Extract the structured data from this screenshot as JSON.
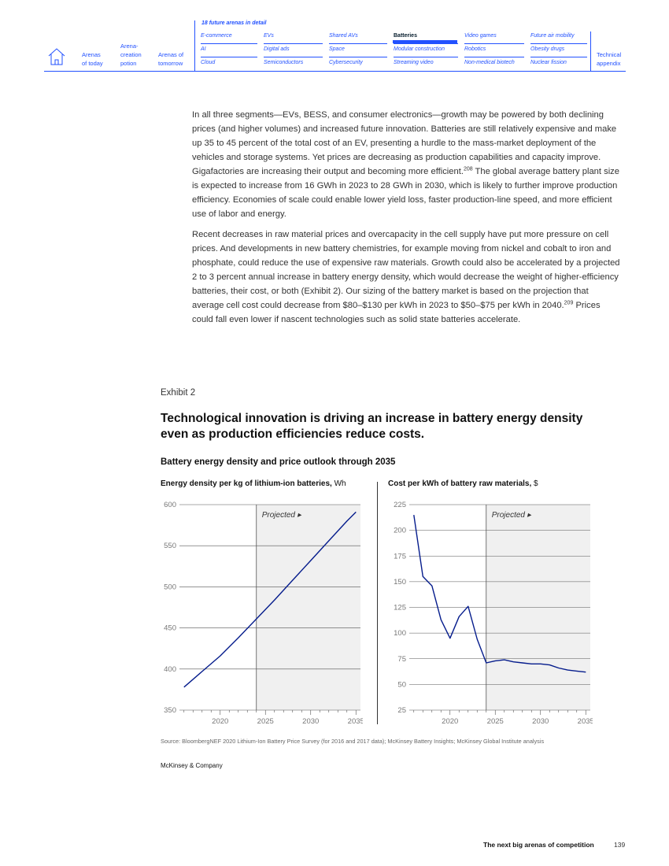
{
  "nav": {
    "home_icon": "house-icon",
    "links": [
      {
        "line1": "Arenas",
        "line2": "of today"
      },
      {
        "line1": "Arena-",
        "line2": "creation",
        "line3": "potion"
      },
      {
        "line1": "Arenas of",
        "line2": "tomorrow"
      },
      {
        "line1": "Technical",
        "line2": "appendix"
      }
    ],
    "section_header": "18 future arenas in detail",
    "arenas": [
      [
        "E-commerce",
        "EVs",
        "Shared AVs",
        "Batteries",
        "Video games",
        "Future air mobility"
      ],
      [
        "AI",
        "Digital ads",
        "Space",
        "Modular construction",
        "Robotics",
        "Obesity drugs"
      ],
      [
        "Cloud",
        "Semiconductors",
        "Cybersecurity",
        "Streaming video",
        "Non-medical biotech",
        "Nuclear fission"
      ]
    ],
    "active_arena": "Batteries"
  },
  "body": {
    "p1_a": "In all three segments—EVs, BESS, and consumer electronics—growth may be powered by both declining prices (and higher volumes) and increased future innovation. Batteries are still relatively expensive and make up 35 to 45 percent of the total cost of an EV, presenting a hurdle to the mass-market deployment of the vehicles and storage systems. Yet prices are decreasing as production capabilities and capacity improve. Gigafactories are increasing their output and becoming more efficient.",
    "p1_sup": "208",
    "p1_b": " The global average battery plant size is expected to increase from 16 GWh in 2023 to 28 GWh in 2030, which is likely to further improve production efficiency. Economies of scale could enable lower yield loss, faster production-line speed, and more efficient use of labor and energy.",
    "p2_a": "Recent decreases in raw material prices and overcapacity in the cell supply have put more pressure on cell prices. And developments in new battery chemistries, for example moving from nickel and cobalt to iron and phosphate, could reduce the use of expensive raw materials. Growth could also be accelerated by a projected 2 to 3 percent annual increase in battery energy density, which would decrease the weight of higher-efficiency batteries, their cost, or both (Exhibit 2). Our sizing of the battery market is based on the projection that average cell cost could decrease from $80–$130 per kWh in 2023 to $50–$75 per kWh in 2040.",
    "p2_sup": "209",
    "p2_b": " Prices could fall even lower if nascent technologies such as solid state batteries accelerate."
  },
  "exhibit": {
    "label": "Exhibit 2",
    "title": "Technological innovation is driving an increase in battery energy density even as production efficiencies reduce costs.",
    "subtitle": "Battery energy density and price outlook through 2035",
    "source": "Source: BloombergNEF 2020 Lithium-Ion Battery Price Survey (for 2016 and 2017 data); McKinsey Battery Insights; McKinsey Global Institute analysis"
  },
  "chart_data": [
    {
      "type": "line",
      "title_bold": "Energy density per kg of lithium-ion batteries,",
      "title_unit": " Wh",
      "annotation": "Projected ▸",
      "projected_from": 2024,
      "xlim": [
        2015.5,
        2035.5
      ],
      "ylim": [
        350,
        600
      ],
      "xticks": [
        2020,
        2025,
        2030,
        2035
      ],
      "yticks": [
        350,
        400,
        450,
        500,
        550,
        600
      ],
      "grid": true,
      "color": "#051c8c",
      "x": [
        2016,
        2018,
        2020,
        2022,
        2024,
        2026,
        2028,
        2030,
        2032,
        2034,
        2035
      ],
      "y": [
        378,
        397,
        416,
        438,
        461,
        484,
        508,
        532,
        556,
        580,
        591
      ]
    },
    {
      "type": "line",
      "title_bold": "Cost per kWh of battery raw materials,",
      "title_unit": " $",
      "annotation": "Projected ▸",
      "projected_from": 2024,
      "xlim": [
        2015.5,
        2035.5
      ],
      "ylim": [
        25,
        225
      ],
      "xticks": [
        2020,
        2025,
        2030,
        2035
      ],
      "yticks": [
        25,
        50,
        75,
        100,
        125,
        150,
        175,
        200,
        225
      ],
      "grid": true,
      "color": "#051c8c",
      "x": [
        2016,
        2017,
        2018,
        2019,
        2020,
        2021,
        2022,
        2023,
        2024,
        2025,
        2026,
        2027,
        2028,
        2029,
        2030,
        2031,
        2032,
        2033,
        2034,
        2035
      ],
      "y": [
        215,
        155,
        146,
        113,
        95,
        116,
        126,
        94,
        71,
        73,
        74,
        72,
        71,
        70,
        70,
        69,
        66,
        64,
        63,
        62
      ]
    }
  ],
  "footer": {
    "brand": "McKinsey & Company",
    "title": "The next big arenas of competition",
    "page": "139"
  }
}
